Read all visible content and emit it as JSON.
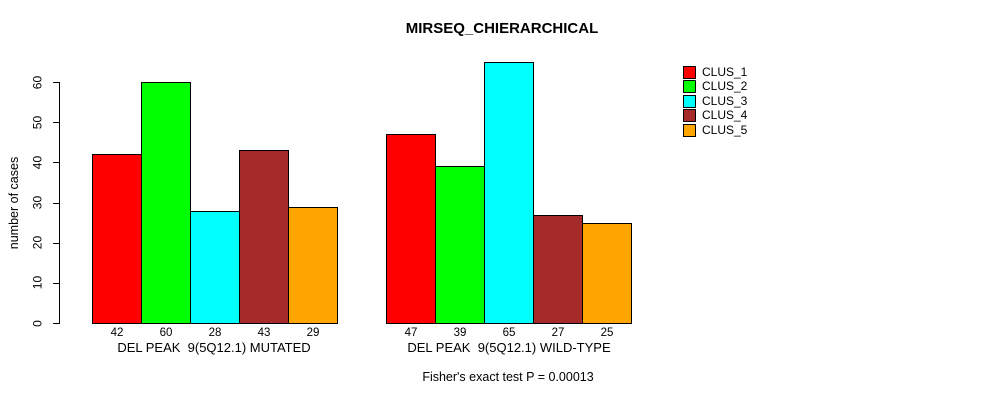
{
  "chart_data": {
    "type": "bar",
    "title": "MIRSEQ_CHIERARCHICAL",
    "ylabel": "number of cases",
    "caption": "Fisher's exact test P = 0.00013",
    "categories": [
      "DEL PEAK  9(5Q12.1) MUTATED",
      "DEL PEAK  9(5Q12.1) WILD-TYPE"
    ],
    "series": [
      {
        "name": "CLUS_1",
        "color": "#FF0000",
        "values": [
          42,
          47
        ]
      },
      {
        "name": "CLUS_2",
        "color": "#00FF00",
        "values": [
          60,
          39
        ]
      },
      {
        "name": "CLUS_3",
        "color": "#00FFFF",
        "values": [
          28,
          65
        ]
      },
      {
        "name": "CLUS_4",
        "color": "#A52A2A",
        "values": [
          43,
          27
        ]
      },
      {
        "name": "CLUS_5",
        "color": "#FFA500",
        "values": [
          29,
          25
        ]
      }
    ],
    "yticks": [
      0,
      10,
      20,
      30,
      40,
      50,
      60
    ],
    "ylim": [
      0,
      65
    ],
    "bar_value_labels_shown": true,
    "legend_position": "right",
    "axis_color": "#000000",
    "background": "#FFFFFF"
  }
}
